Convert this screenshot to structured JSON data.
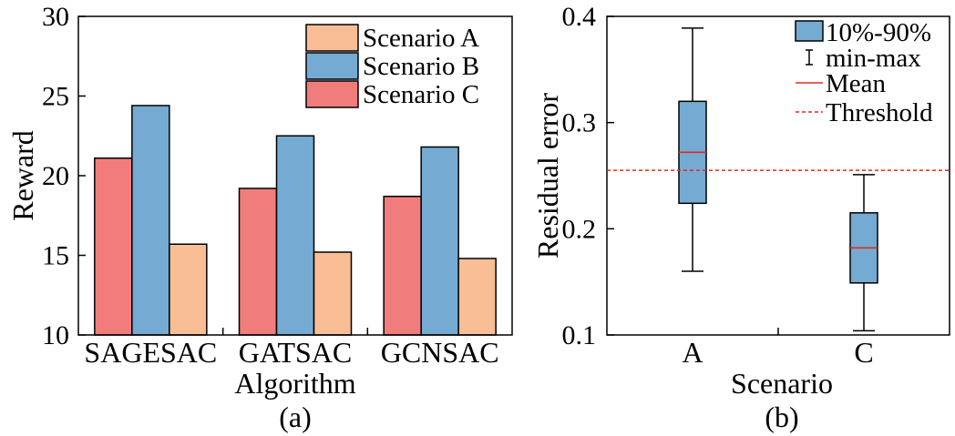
{
  "colors": {
    "scenario_a": "#f9be96",
    "scenario_b": "#75abd2",
    "scenario_c": "#f17c7c",
    "mean": "#e02b20",
    "threshold": "#e02b20"
  },
  "chart_data": [
    {
      "type": "bar",
      "panel_label": "(a)",
      "xlabel": "Algorithm",
      "ylabel": "Reward",
      "ylim": [
        10,
        30
      ],
      "yticks": [
        "10",
        "15",
        "20",
        "25",
        "30"
      ],
      "categories": [
        "SAGESAC",
        "GATSAC",
        "GCNSAC"
      ],
      "series": [
        {
          "name": "Scenario C",
          "values": [
            21.1,
            19.2,
            18.7
          ]
        },
        {
          "name": "Scenario B",
          "values": [
            24.4,
            22.5,
            21.8
          ]
        },
        {
          "name": "Scenario A",
          "values": [
            15.7,
            15.2,
            14.8
          ]
        }
      ],
      "legend": {
        "position": "top-right",
        "entries": [
          "Scenario A",
          "Scenario B",
          "Scenario C"
        ]
      },
      "grid": false
    },
    {
      "type": "box",
      "panel_label": "(b)",
      "xlabel": "Scenario",
      "ylabel": "Residual error",
      "ylim": [
        0.1,
        0.4
      ],
      "yticks": [
        "0.1",
        "0.2",
        "0.3",
        "0.4"
      ],
      "categories": [
        "A",
        "C"
      ],
      "boxes": [
        {
          "category": "A",
          "min": 0.16,
          "p10": 0.224,
          "mean": 0.272,
          "p90": 0.32,
          "max": 0.389
        },
        {
          "category": "C",
          "min": 0.104,
          "p10": 0.149,
          "mean": 0.182,
          "p90": 0.215,
          "max": 0.251
        }
      ],
      "threshold": 0.255,
      "legend": {
        "position": "top-right",
        "entries": [
          "10%-90%",
          "min-max",
          "Mean",
          "Threshold"
        ]
      },
      "grid": false
    }
  ]
}
